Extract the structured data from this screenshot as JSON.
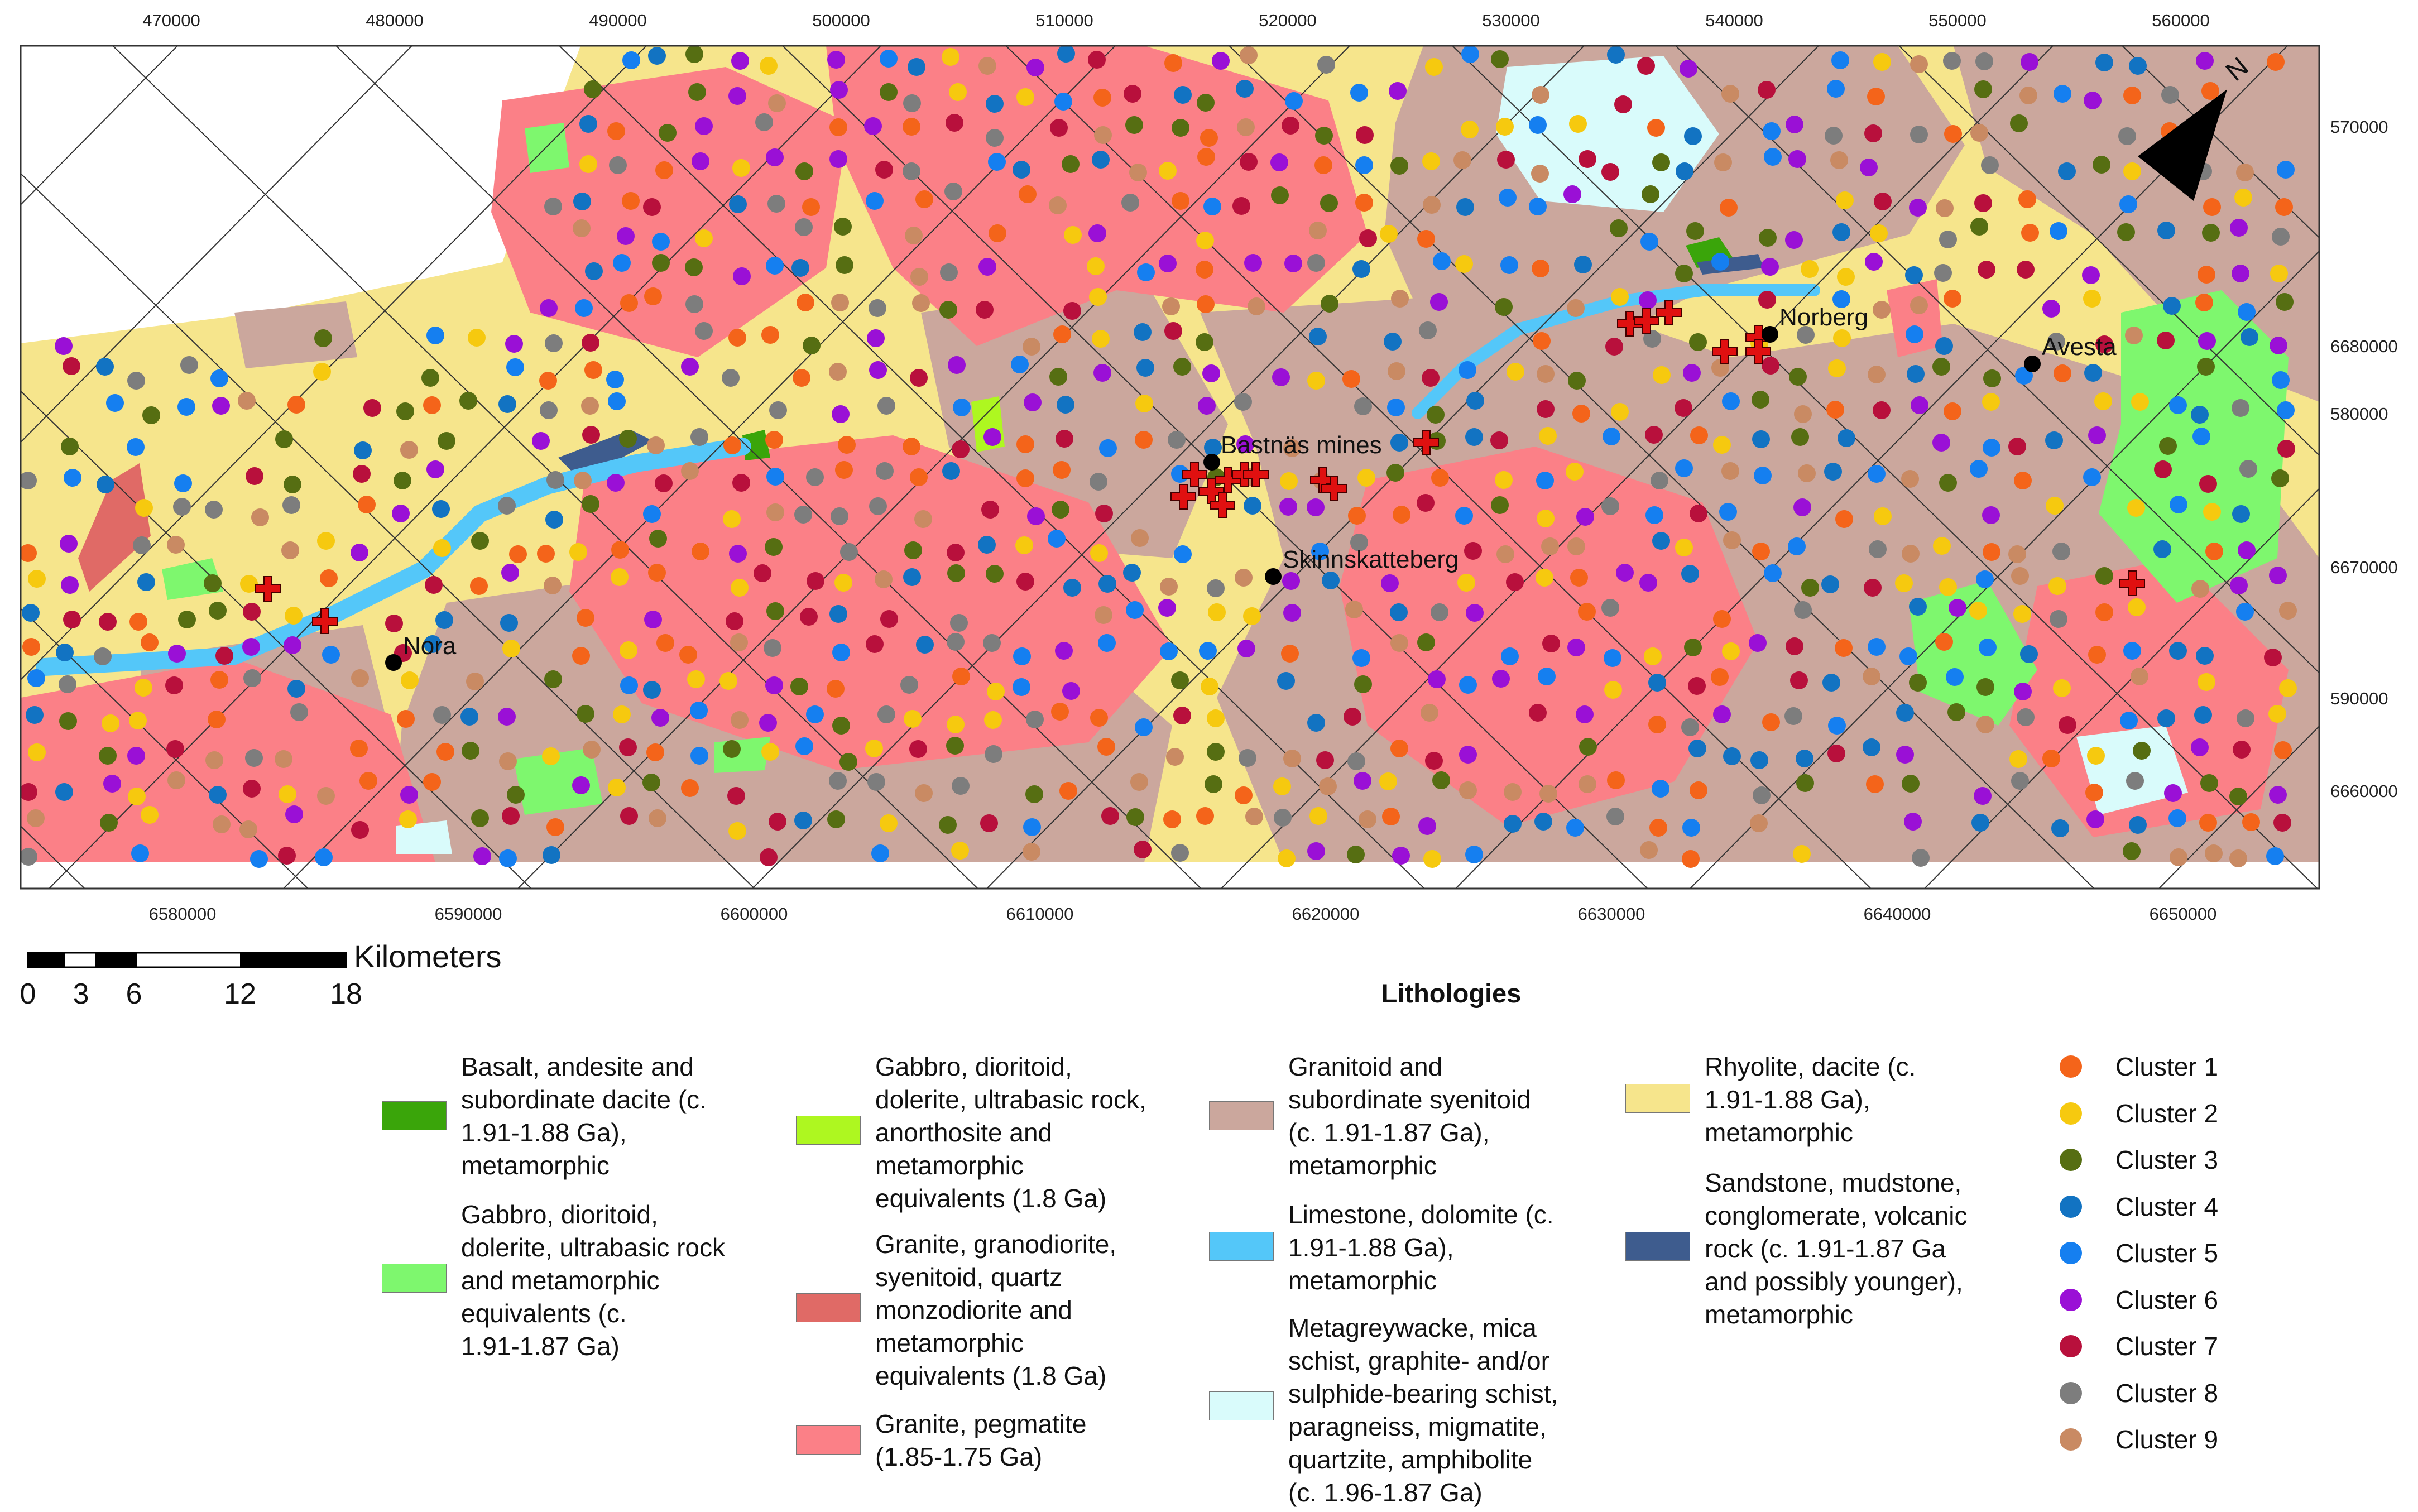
{
  "map": {
    "top_ticks": [
      "470000",
      "480000",
      "490000",
      "500000",
      "510000",
      "520000",
      "530000",
      "540000",
      "550000",
      "560000"
    ],
    "right_ticks_a": [
      "570000",
      "580000",
      "590000"
    ],
    "right_ticks_b": [
      "6680000",
      "6670000",
      "6660000"
    ],
    "bottom_ticks": [
      "6580000",
      "6590000",
      "6600000",
      "6610000",
      "6620000",
      "6630000",
      "6640000",
      "6650000"
    ],
    "towns": [
      {
        "name": "Nora"
      },
      {
        "name": "Bastnäs mines"
      },
      {
        "name": "Skinnskatteberg"
      },
      {
        "name": "Norberg"
      },
      {
        "name": "Avesta"
      }
    ],
    "north_label": "N",
    "scale_title": "Kilometers",
    "scale_ticks": [
      "0",
      "3",
      "6",
      "12",
      "18"
    ]
  },
  "legend": {
    "title": "Lithologies",
    "items": [
      {
        "color": "#3aa50a",
        "text": "Basalt, andesite and\nsubordinate dacite (c.\n1.91-1.88 Ga),\nmetamorphic"
      },
      {
        "color": "#7ef76e",
        "text": "Gabbro, dioritoid,\ndolerite, ultrabasic rock\nand metamorphic\nequivalents (c.\n1.91-1.87 Ga)"
      },
      {
        "color": "#aef720",
        "text": "Gabbro, dioritoid,\ndolerite, ultrabasic rock,\nanorthosite and\nmetamorphic\nequivalents (1.8 Ga)"
      },
      {
        "color": "#e06a66",
        "text": "Granite, granodiorite,\nsyenitoid, quartz\nmonzodiorite and\nmetamorphic\nequivalents (1.8 Ga)"
      },
      {
        "color": "#fb8087",
        "text": "Granite, pegmatite\n(1.85-1.75 Ga)"
      },
      {
        "color": "#cba79d",
        "text": "Granitoid and\nsubordinate syenitoid\n(c. 1.91-1.87 Ga),\nmetamorphic"
      },
      {
        "color": "#54c7f9",
        "text": "Limestone, dolomite (c.\n1.91-1.88 Ga),\nmetamorphic"
      },
      {
        "color": "#d9fbfb",
        "text": "Metagreywacke, mica\nschist, graphite- and/or\nsulphide-bearing schist,\nparagneiss, migmatite,\nquartzite, amphibolite\n(c. 1.96-1.87 Ga)"
      },
      {
        "color": "#f6e58c",
        "text": "Rhyolite, dacite (c.\n1.91-1.88 Ga),\nmetamorphic"
      },
      {
        "color": "#3e5c8e",
        "text": "Sandstone, mudstone,\nconglomerate, volcanic\nrock (c. 1.91-1.87 Ga\nand possibly younger),\nmetamorphic"
      }
    ],
    "clusters": [
      {
        "label": "Cluster 1",
        "color": "#f4641a"
      },
      {
        "label": "Cluster 2",
        "color": "#f6c90f"
      },
      {
        "label": "Cluster 3",
        "color": "#566e12"
      },
      {
        "label": "Cluster 4",
        "color": "#1273c2"
      },
      {
        "label": "Cluster 5",
        "color": "#157ff0"
      },
      {
        "label": "Cluster 6",
        "color": "#9a10d6"
      },
      {
        "label": "Cluster 7",
        "color": "#b8103c"
      },
      {
        "label": "Cluster 8",
        "color": "#7d7d7d"
      },
      {
        "label": "Cluster 9",
        "color": "#c98a63"
      }
    ]
  }
}
